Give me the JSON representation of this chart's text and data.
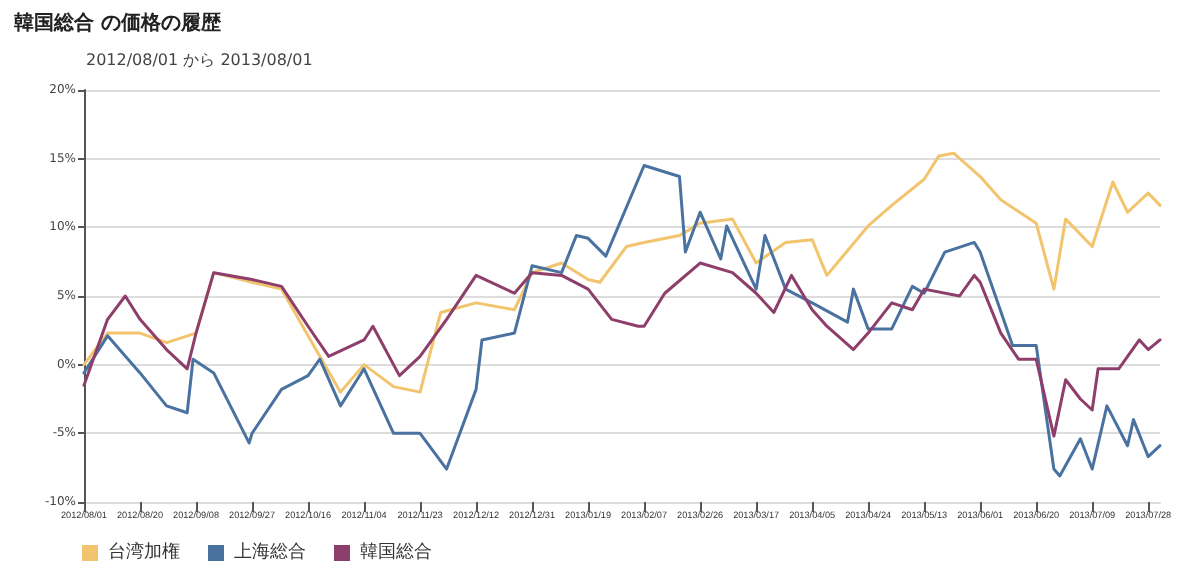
{
  "chart_data": {
    "type": "line",
    "title": "韓国総合 の価格の履歴",
    "subtitle": "2012/08/01 から 2013/08/01",
    "xlim": [
      "2012-08-01",
      "2013-08-01"
    ],
    "xticks": [
      {
        "value": "2012-08-01",
        "label": "2012/08/01"
      },
      {
        "value": "2012-08-20",
        "label": "2012/08/20"
      },
      {
        "value": "2012-09-08",
        "label": "2012/09/08"
      },
      {
        "value": "2012-09-27",
        "label": "2012/09/27"
      },
      {
        "value": "2012-10-16",
        "label": "2012/10/16"
      },
      {
        "value": "2012-11-04",
        "label": "2012/11/04"
      },
      {
        "value": "2012-11-23",
        "label": "2012/11/23"
      },
      {
        "value": "2012-12-12",
        "label": "2012/12/12"
      },
      {
        "value": "2012-12-31",
        "label": "2012/12/31"
      },
      {
        "value": "2013-01-19",
        "label": "2013/01/19"
      },
      {
        "value": "2013-02-07",
        "label": "2013/02/07"
      },
      {
        "value": "2013-02-26",
        "label": "2013/02/26"
      },
      {
        "value": "2013-03-17",
        "label": "2013/03/17"
      },
      {
        "value": "2013-04-05",
        "label": "2013/04/05"
      },
      {
        "value": "2013-04-24",
        "label": "2013/04/24"
      },
      {
        "value": "2013-05-13",
        "label": "2013/05/13"
      },
      {
        "value": "2013-06-01",
        "label": "2013/06/01"
      },
      {
        "value": "2013-06-20",
        "label": "2013/06/20"
      },
      {
        "value": "2013-07-09",
        "label": "2013/07/09"
      },
      {
        "value": "2013-07-28",
        "label": "2013/07/28"
      }
    ],
    "ylim": [
      -10,
      20
    ],
    "yticks": [
      {
        "value": -10,
        "label": "-10%"
      },
      {
        "value": -5,
        "label": "-5%"
      },
      {
        "value": 0,
        "label": "0%"
      },
      {
        "value": 5,
        "label": "5%"
      },
      {
        "value": 10,
        "label": "10%"
      },
      {
        "value": 15,
        "label": "15%"
      },
      {
        "value": 20,
        "label": "20%"
      }
    ],
    "grid": "y",
    "legend": "bottom left",
    "marker": "none",
    "line_style": "solid",
    "series": [
      {
        "name": "台湾加権",
        "color": "#f2c46d",
        "x": [
          "2012-08-01",
          "2012-08-09",
          "2012-08-20",
          "2012-08-29",
          "2012-09-08",
          "2012-09-14",
          "2012-09-27",
          "2012-10-07",
          "2012-10-16",
          "2012-10-27",
          "2012-11-04",
          "2012-11-14",
          "2012-11-23",
          "2012-11-30",
          "2012-12-12",
          "2012-12-25",
          "2012-12-31",
          "2013-01-10",
          "2013-01-19",
          "2013-01-23",
          "2013-02-01",
          "2013-02-07",
          "2013-02-19",
          "2013-02-26",
          "2013-03-09",
          "2013-03-17",
          "2013-03-27",
          "2013-04-05",
          "2013-04-10",
          "2013-04-24",
          "2013-05-02",
          "2013-05-13",
          "2013-05-18",
          "2013-05-23",
          "2013-06-01",
          "2013-06-08",
          "2013-06-20",
          "2013-06-26",
          "2013-06-30",
          "2013-07-09",
          "2013-07-16",
          "2013-07-21",
          "2013-07-28",
          "2013-08-01"
        ],
        "values": [
          0,
          2.3,
          2.3,
          1.6,
          2.3,
          6.7,
          6.0,
          5.5,
          2.1,
          -2.0,
          0,
          -1.6,
          -2.0,
          3.8,
          4.5,
          4.0,
          6.7,
          7.4,
          6.2,
          6.0,
          8.6,
          8.9,
          9.4,
          10.3,
          10.6,
          7.4,
          8.9,
          9.1,
          6.5,
          10.1,
          11.6,
          13.5,
          15.2,
          15.4,
          13.7,
          12.0,
          10.3,
          5.5,
          10.6,
          8.6,
          13.3,
          11.1,
          12.5,
          11.6
        ]
      },
      {
        "name": "上海総合",
        "color": "#4a72a0",
        "x": [
          "2012-08-01",
          "2012-08-09",
          "2012-08-20",
          "2012-08-29",
          "2012-09-05",
          "2012-09-07",
          "2012-09-14",
          "2012-09-26",
          "2012-09-27",
          "2012-10-07",
          "2012-10-16",
          "2012-10-20",
          "2012-10-27",
          "2012-11-04",
          "2012-11-14",
          "2012-11-23",
          "2012-12-02",
          "2012-12-12",
          "2012-12-14",
          "2012-12-25",
          "2012-12-31",
          "2013-01-10",
          "2013-01-15",
          "2013-01-19",
          "2013-01-25",
          "2013-02-07",
          "2013-02-19",
          "2013-02-21",
          "2013-02-26",
          "2013-03-05",
          "2013-03-07",
          "2013-03-17",
          "2013-03-20",
          "2013-03-27",
          "2013-04-05",
          "2013-04-17",
          "2013-04-19",
          "2013-04-24",
          "2013-05-02",
          "2013-05-09",
          "2013-05-13",
          "2013-05-20",
          "2013-05-30",
          "2013-06-01",
          "2013-06-12",
          "2013-06-20",
          "2013-06-26",
          "2013-06-28",
          "2013-07-05",
          "2013-07-09",
          "2013-07-14",
          "2013-07-21",
          "2013-07-23",
          "2013-07-28",
          "2013-08-01"
        ],
        "values": [
          -0.6,
          2.1,
          -0.6,
          -3.0,
          -3.5,
          0.4,
          -0.6,
          -5.7,
          -5.0,
          -1.8,
          -0.8,
          0.4,
          -3.0,
          -0.3,
          -5.0,
          -5.0,
          -7.6,
          -1.8,
          1.8,
          2.3,
          7.2,
          6.7,
          9.4,
          9.2,
          7.9,
          14.5,
          13.7,
          8.2,
          11.1,
          7.7,
          10.1,
          5.5,
          9.4,
          5.5,
          4.5,
          3.1,
          5.5,
          2.6,
          2.6,
          5.7,
          5.2,
          8.2,
          8.9,
          8.2,
          1.4,
          1.4,
          -7.6,
          -8.1,
          -5.4,
          -7.6,
          -3.0,
          -5.9,
          -4.0,
          -6.7,
          -5.9
        ]
      },
      {
        "name": "韓国総合",
        "color": "#8e3e6a",
        "x": [
          "2012-08-01",
          "2012-08-09",
          "2012-08-15",
          "2012-08-20",
          "2012-08-29",
          "2012-09-05",
          "2012-09-08",
          "2012-09-14",
          "2012-09-27",
          "2012-10-07",
          "2012-10-16",
          "2012-10-23",
          "2012-11-04",
          "2012-11-07",
          "2012-11-16",
          "2012-11-23",
          "2012-12-02",
          "2012-12-12",
          "2012-12-25",
          "2012-12-31",
          "2013-01-10",
          "2013-01-19",
          "2013-01-27",
          "2013-02-05",
          "2013-02-07",
          "2013-02-14",
          "2013-02-26",
          "2013-03-09",
          "2013-03-17",
          "2013-03-23",
          "2013-03-29",
          "2013-04-05",
          "2013-04-10",
          "2013-04-19",
          "2013-04-24",
          "2013-05-02",
          "2013-05-09",
          "2013-05-13",
          "2013-05-25",
          "2013-05-30",
          "2013-06-01",
          "2013-06-08",
          "2013-06-14",
          "2013-06-20",
          "2013-06-26",
          "2013-06-30",
          "2013-07-05",
          "2013-07-09",
          "2013-07-11",
          "2013-07-18",
          "2013-07-25",
          "2013-07-28",
          "2013-08-01"
        ],
        "values": [
          -1.5,
          3.3,
          5.0,
          3.3,
          1.1,
          -0.3,
          2.3,
          6.7,
          6.2,
          5.7,
          2.8,
          0.6,
          1.8,
          2.8,
          -0.8,
          0.6,
          3.3,
          6.5,
          5.2,
          6.7,
          6.5,
          5.5,
          3.3,
          2.8,
          2.8,
          5.2,
          7.4,
          6.7,
          5.2,
          3.8,
          6.5,
          4.0,
          2.8,
          1.1,
          2.3,
          4.5,
          4.0,
          5.5,
          5.0,
          6.5,
          6.0,
          2.3,
          0.4,
          0.4,
          -5.2,
          -1.1,
          -2.5,
          -3.3,
          -0.3,
          -0.3,
          1.8,
          1.1,
          1.8
        ]
      }
    ]
  }
}
